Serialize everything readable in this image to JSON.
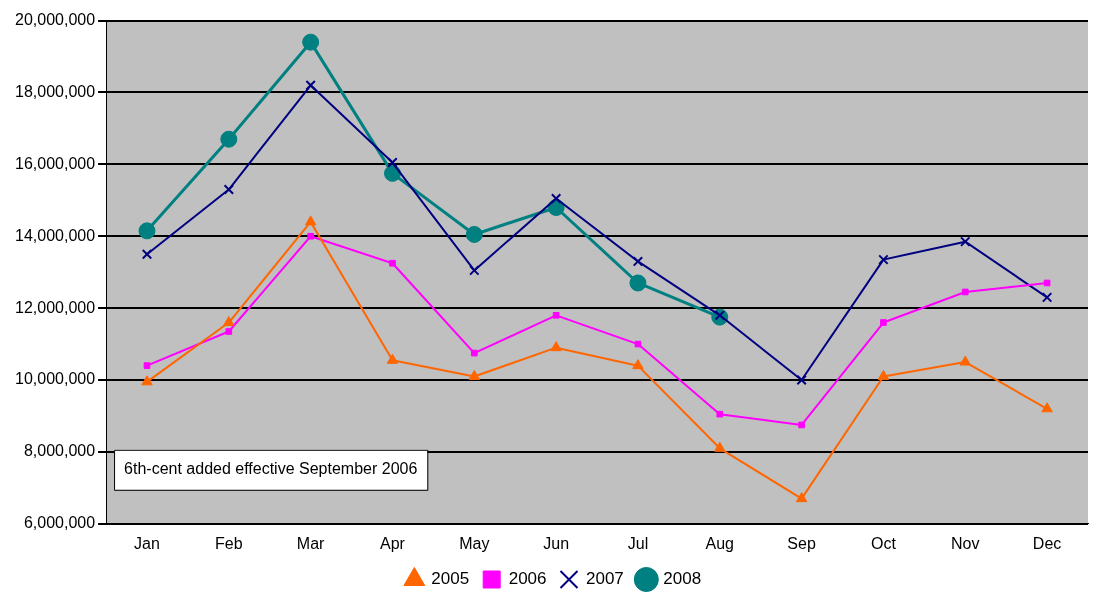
{
  "chart_data": {
    "type": "line",
    "categories": [
      "Jan",
      "Feb",
      "Mar",
      "Apr",
      "May",
      "Jun",
      "Jul",
      "Aug",
      "Sep",
      "Oct",
      "Nov",
      "Dec"
    ],
    "series": [
      {
        "name": "2005",
        "color": "#ff6600",
        "marker": "triangle",
        "values": [
          9950000,
          11600000,
          14400000,
          10550000,
          10100000,
          10900000,
          10400000,
          8100000,
          6700000,
          10100000,
          10500000,
          9200000
        ]
      },
      {
        "name": "2006",
        "color": "#ff00ff",
        "marker": "square",
        "values": [
          10400000,
          11350000,
          14000000,
          13250000,
          10750000,
          11800000,
          11000000,
          9050000,
          8750000,
          11600000,
          12450000,
          12700000
        ]
      },
      {
        "name": "2007",
        "color": "#000080",
        "marker": "cross",
        "values": [
          13500000,
          15300000,
          18200000,
          16050000,
          13050000,
          15050000,
          13300000,
          11800000,
          10000000,
          13350000,
          13850000,
          12300000
        ]
      },
      {
        "name": "2008",
        "color": "#008080",
        "marker": "circle",
        "values": [
          14150000,
          16700000,
          19400000,
          15750000,
          14050000,
          14800000,
          12700000,
          11750000,
          null,
          null,
          null,
          null
        ]
      }
    ],
    "ylim": [
      6000000,
      20000000
    ],
    "yticks": [
      {
        "value": 6000000,
        "label": "6,000,000"
      },
      {
        "value": 8000000,
        "label": "8,000,000"
      },
      {
        "value": 10000000,
        "label": "10,000,000"
      },
      {
        "value": 12000000,
        "label": "12,000,000"
      },
      {
        "value": 14000000,
        "label": "14,000,000"
      },
      {
        "value": 16000000,
        "label": "16,000,000"
      },
      {
        "value": 18000000,
        "label": "18,000,000"
      },
      {
        "value": 20000000,
        "label": "20,000,000"
      }
    ],
    "grid": "y",
    "legend": "bottom",
    "line_style": "solid",
    "annotations": [
      "6th-cent added effective September 2006"
    ]
  }
}
